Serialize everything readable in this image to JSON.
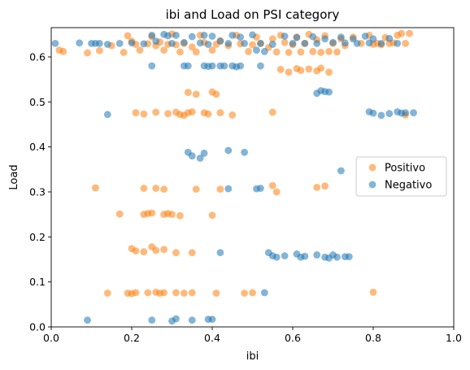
{
  "chart_data": {
    "type": "scatter",
    "title": "ibi and Load on PSI category",
    "xlabel": "ibi",
    "ylabel": "Load",
    "xlim": [
      0.0,
      1.0
    ],
    "ylim": [
      0.0,
      0.665
    ],
    "xticks": [
      "0.0",
      "0.2",
      "0.4",
      "0.6",
      "0.8",
      "1.0"
    ],
    "yticks": [
      "0.0",
      "0.1",
      "0.2",
      "0.3",
      "0.4",
      "0.5",
      "0.6"
    ],
    "grid": false,
    "legend_position": "center-right",
    "series": [
      {
        "name": "Positivo",
        "color": "#ff7f0e",
        "points": [
          [
            0.02,
            0.615
          ],
          [
            0.03,
            0.612
          ],
          [
            0.09,
            0.609
          ],
          [
            0.12,
            0.614
          ],
          [
            0.15,
            0.625
          ],
          [
            0.18,
            0.61
          ],
          [
            0.19,
            0.647
          ],
          [
            0.2,
            0.635
          ],
          [
            0.21,
            0.628
          ],
          [
            0.22,
            0.615
          ],
          [
            0.24,
            0.629
          ],
          [
            0.25,
            0.645
          ],
          [
            0.26,
            0.625
          ],
          [
            0.27,
            0.633
          ],
          [
            0.28,
            0.615
          ],
          [
            0.29,
            0.628
          ],
          [
            0.3,
            0.651
          ],
          [
            0.31,
            0.627
          ],
          [
            0.32,
            0.611
          ],
          [
            0.33,
            0.63
          ],
          [
            0.35,
            0.622
          ],
          [
            0.36,
            0.611
          ],
          [
            0.37,
            0.648
          ],
          [
            0.38,
            0.632
          ],
          [
            0.4,
            0.615
          ],
          [
            0.41,
            0.628
          ],
          [
            0.42,
            0.636
          ],
          [
            0.44,
            0.625
          ],
          [
            0.46,
            0.648
          ],
          [
            0.47,
            0.629
          ],
          [
            0.49,
            0.612
          ],
          [
            0.5,
            0.627
          ],
          [
            0.51,
            0.644
          ],
          [
            0.52,
            0.63
          ],
          [
            0.54,
            0.621
          ],
          [
            0.55,
            0.64
          ],
          [
            0.56,
            0.611
          ],
          [
            0.57,
            0.648
          ],
          [
            0.58,
            0.632
          ],
          [
            0.59,
            0.61
          ],
          [
            0.6,
            0.627
          ],
          [
            0.61,
            0.644
          ],
          [
            0.62,
            0.611
          ],
          [
            0.63,
            0.63
          ],
          [
            0.64,
            0.65
          ],
          [
            0.65,
            0.612
          ],
          [
            0.66,
            0.638
          ],
          [
            0.67,
            0.61
          ],
          [
            0.68,
            0.647
          ],
          [
            0.69,
            0.612
          ],
          [
            0.7,
            0.63
          ],
          [
            0.71,
            0.611
          ],
          [
            0.72,
            0.64
          ],
          [
            0.73,
            0.625
          ],
          [
            0.75,
            0.644
          ],
          [
            0.77,
            0.63
          ],
          [
            0.79,
            0.648
          ],
          [
            0.8,
            0.628
          ],
          [
            0.81,
            0.63
          ],
          [
            0.82,
            0.627
          ],
          [
            0.83,
            0.643
          ],
          [
            0.84,
            0.63
          ],
          [
            0.85,
            0.631
          ],
          [
            0.86,
            0.648
          ],
          [
            0.87,
            0.652
          ],
          [
            0.88,
            0.63
          ],
          [
            0.89,
            0.652
          ],
          [
            0.57,
            0.572
          ],
          [
            0.59,
            0.566
          ],
          [
            0.61,
            0.574
          ],
          [
            0.62,
            0.57
          ],
          [
            0.64,
            0.573
          ],
          [
            0.66,
            0.569
          ],
          [
            0.67,
            0.575
          ],
          [
            0.69,
            0.566
          ],
          [
            0.34,
            0.521
          ],
          [
            0.36,
            0.517
          ],
          [
            0.4,
            0.522
          ],
          [
            0.41,
            0.517
          ],
          [
            0.21,
            0.476
          ],
          [
            0.23,
            0.473
          ],
          [
            0.26,
            0.477
          ],
          [
            0.29,
            0.474
          ],
          [
            0.31,
            0.477
          ],
          [
            0.32,
            0.472
          ],
          [
            0.33,
            0.47
          ],
          [
            0.34,
            0.476
          ],
          [
            0.35,
            0.478
          ],
          [
            0.38,
            0.476
          ],
          [
            0.39,
            0.473
          ],
          [
            0.42,
            0.476
          ],
          [
            0.45,
            0.471
          ],
          [
            0.55,
            0.477
          ],
          [
            0.88,
            0.471
          ],
          [
            0.11,
            0.309
          ],
          [
            0.23,
            0.308
          ],
          [
            0.26,
            0.308
          ],
          [
            0.28,
            0.306
          ],
          [
            0.36,
            0.306
          ],
          [
            0.42,
            0.306
          ],
          [
            0.55,
            0.314
          ],
          [
            0.56,
            0.3
          ],
          [
            0.66,
            0.31
          ],
          [
            0.68,
            0.313
          ],
          [
            0.17,
            0.251
          ],
          [
            0.23,
            0.25
          ],
          [
            0.24,
            0.252
          ],
          [
            0.25,
            0.253
          ],
          [
            0.28,
            0.25
          ],
          [
            0.29,
            0.252
          ],
          [
            0.3,
            0.25
          ],
          [
            0.32,
            0.247
          ],
          [
            0.4,
            0.248
          ],
          [
            0.2,
            0.174
          ],
          [
            0.21,
            0.169
          ],
          [
            0.23,
            0.167
          ],
          [
            0.25,
            0.178
          ],
          [
            0.26,
            0.17
          ],
          [
            0.28,
            0.172
          ],
          [
            0.31,
            0.165
          ],
          [
            0.35,
            0.165
          ],
          [
            0.14,
            0.075
          ],
          [
            0.19,
            0.075
          ],
          [
            0.2,
            0.074
          ],
          [
            0.21,
            0.076
          ],
          [
            0.24,
            0.076
          ],
          [
            0.26,
            0.077
          ],
          [
            0.27,
            0.075
          ],
          [
            0.28,
            0.076
          ],
          [
            0.31,
            0.076
          ],
          [
            0.33,
            0.075
          ],
          [
            0.35,
            0.076
          ],
          [
            0.41,
            0.075
          ],
          [
            0.48,
            0.075
          ],
          [
            0.5,
            0.076
          ],
          [
            0.8,
            0.077
          ]
        ]
      },
      {
        "name": "Negativo",
        "color": "#1f77b4",
        "points": [
          [
            0.01,
            0.63
          ],
          [
            0.07,
            0.631
          ],
          [
            0.1,
            0.63
          ],
          [
            0.11,
            0.63
          ],
          [
            0.12,
            0.63
          ],
          [
            0.14,
            0.628
          ],
          [
            0.17,
            0.63
          ],
          [
            0.2,
            0.631
          ],
          [
            0.23,
            0.629
          ],
          [
            0.25,
            0.648
          ],
          [
            0.26,
            0.635
          ],
          [
            0.28,
            0.65
          ],
          [
            0.29,
            0.647
          ],
          [
            0.3,
            0.63
          ],
          [
            0.31,
            0.648
          ],
          [
            0.33,
            0.632
          ],
          [
            0.35,
            0.645
          ],
          [
            0.37,
            0.631
          ],
          [
            0.38,
            0.648
          ],
          [
            0.39,
            0.628
          ],
          [
            0.4,
            0.646
          ],
          [
            0.42,
            0.635
          ],
          [
            0.44,
            0.63
          ],
          [
            0.45,
            0.648
          ],
          [
            0.47,
            0.644
          ],
          [
            0.48,
            0.63
          ],
          [
            0.5,
            0.649
          ],
          [
            0.51,
            0.615
          ],
          [
            0.52,
            0.63
          ],
          [
            0.53,
            0.612
          ],
          [
            0.55,
            0.628
          ],
          [
            0.58,
            0.646
          ],
          [
            0.6,
            0.63
          ],
          [
            0.61,
            0.643
          ],
          [
            0.63,
            0.63
          ],
          [
            0.65,
            0.645
          ],
          [
            0.66,
            0.63
          ],
          [
            0.68,
            0.64
          ],
          [
            0.7,
            0.632
          ],
          [
            0.72,
            0.644
          ],
          [
            0.73,
            0.631
          ],
          [
            0.75,
            0.64
          ],
          [
            0.76,
            0.63
          ],
          [
            0.78,
            0.646
          ],
          [
            0.79,
            0.631
          ],
          [
            0.8,
            0.64
          ],
          [
            0.82,
            0.63
          ],
          [
            0.84,
            0.641
          ],
          [
            0.86,
            0.63
          ],
          [
            0.25,
            0.58
          ],
          [
            0.33,
            0.58
          ],
          [
            0.34,
            0.58
          ],
          [
            0.38,
            0.58
          ],
          [
            0.39,
            0.579
          ],
          [
            0.4,
            0.58
          ],
          [
            0.42,
            0.58
          ],
          [
            0.43,
            0.58
          ],
          [
            0.45,
            0.58
          ],
          [
            0.46,
            0.578
          ],
          [
            0.47,
            0.58
          ],
          [
            0.52,
            0.58
          ],
          [
            0.66,
            0.519
          ],
          [
            0.67,
            0.525
          ],
          [
            0.68,
            0.523
          ],
          [
            0.69,
            0.522
          ],
          [
            0.14,
            0.472
          ],
          [
            0.79,
            0.478
          ],
          [
            0.8,
            0.475
          ],
          [
            0.82,
            0.47
          ],
          [
            0.84,
            0.474
          ],
          [
            0.86,
            0.478
          ],
          [
            0.87,
            0.475
          ],
          [
            0.88,
            0.476
          ],
          [
            0.9,
            0.476
          ],
          [
            0.34,
            0.388
          ],
          [
            0.35,
            0.38
          ],
          [
            0.37,
            0.375
          ],
          [
            0.38,
            0.386
          ],
          [
            0.44,
            0.392
          ],
          [
            0.48,
            0.388
          ],
          [
            0.72,
            0.347
          ],
          [
            0.44,
            0.307
          ],
          [
            0.51,
            0.307
          ],
          [
            0.52,
            0.308
          ],
          [
            0.42,
            0.165
          ],
          [
            0.54,
            0.165
          ],
          [
            0.55,
            0.158
          ],
          [
            0.56,
            0.155
          ],
          [
            0.58,
            0.158
          ],
          [
            0.61,
            0.162
          ],
          [
            0.62,
            0.155
          ],
          [
            0.63,
            0.157
          ],
          [
            0.66,
            0.16
          ],
          [
            0.68,
            0.155
          ],
          [
            0.69,
            0.153
          ],
          [
            0.7,
            0.16
          ],
          [
            0.71,
            0.155
          ],
          [
            0.73,
            0.156
          ],
          [
            0.74,
            0.156
          ],
          [
            0.53,
            0.076
          ],
          [
            0.09,
            0.015
          ],
          [
            0.25,
            0.015
          ],
          [
            0.3,
            0.013
          ],
          [
            0.31,
            0.018
          ],
          [
            0.35,
            0.015
          ],
          [
            0.39,
            0.017
          ],
          [
            0.4,
            0.017
          ]
        ]
      }
    ]
  }
}
